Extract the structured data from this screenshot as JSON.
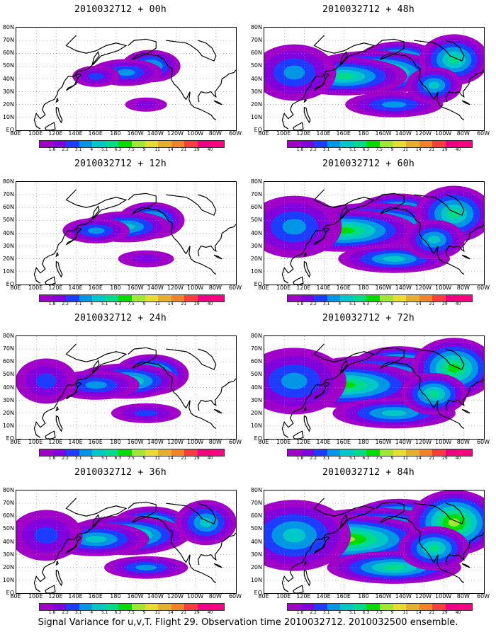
{
  "panels": [
    {
      "title": "2010032712 + 00h",
      "spread": 0.5
    },
    {
      "title": "2010032712 + 48h",
      "spread": 2.5
    },
    {
      "title": "2010032712 + 12h",
      "spread": 1.0
    },
    {
      "title": "2010032712 + 60h",
      "spread": 3.0
    },
    {
      "title": "2010032712 + 24h",
      "spread": 1.5
    },
    {
      "title": "2010032712 + 72h",
      "spread": 3.4
    },
    {
      "title": "2010032712 + 36h",
      "spread": 2.0
    },
    {
      "title": "2010032712 + 84h",
      "spread": 3.8
    }
  ],
  "y_labels": [
    "80N",
    "70N",
    "60N",
    "50N",
    "40N",
    "30N",
    "20N",
    "10N",
    "EQ"
  ],
  "x_labels": [
    "80E",
    "100E",
    "120E",
    "140E",
    "160E",
    "180",
    "160W",
    "140W",
    "120W",
    "100W",
    "80W",
    "60W"
  ],
  "colorbar": {
    "labels": [
      "1.8",
      "2.2",
      "3.1",
      "4",
      "5.1",
      "6.3",
      "7.5",
      "9",
      "11",
      "14",
      "21",
      "29",
      "40"
    ],
    "colors": [
      "#a000c8",
      "#8200dc",
      "#1e3cff",
      "#0096e6",
      "#00c8c8",
      "#00dc8c",
      "#00dc00",
      "#a0e632",
      "#e6dc32",
      "#e6af2d",
      "#f08228",
      "#fa3c3c",
      "#f00082"
    ]
  },
  "caption": "Signal Variance for u,v,T. Flight 29. Observation time 2010032712. 2010032500 ensemble."
}
